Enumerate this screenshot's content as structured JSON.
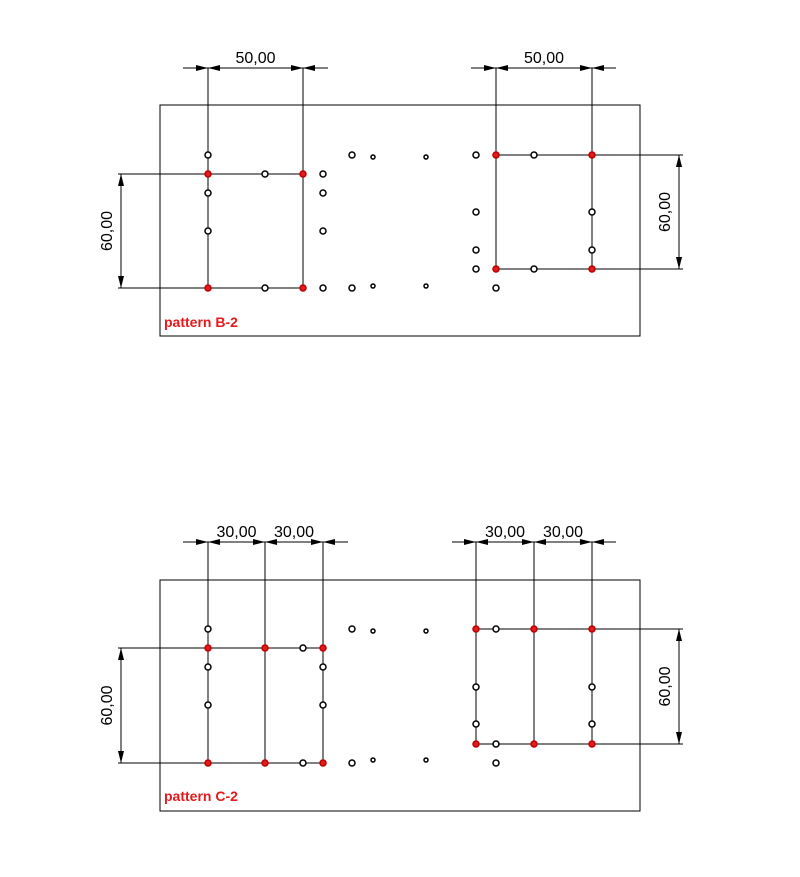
{
  "drawings": [
    {
      "label": "pattern B-2",
      "horizontal_dims": [
        "50,00",
        "50,00"
      ],
      "vertical_dims": [
        "60,00",
        "60,00"
      ]
    },
    {
      "label": "pattern C-2",
      "horizontal_dims": [
        "30,00",
        "30,00",
        "30,00",
        "30,00"
      ],
      "vertical_dims": [
        "60,00",
        "60,00"
      ]
    }
  ]
}
